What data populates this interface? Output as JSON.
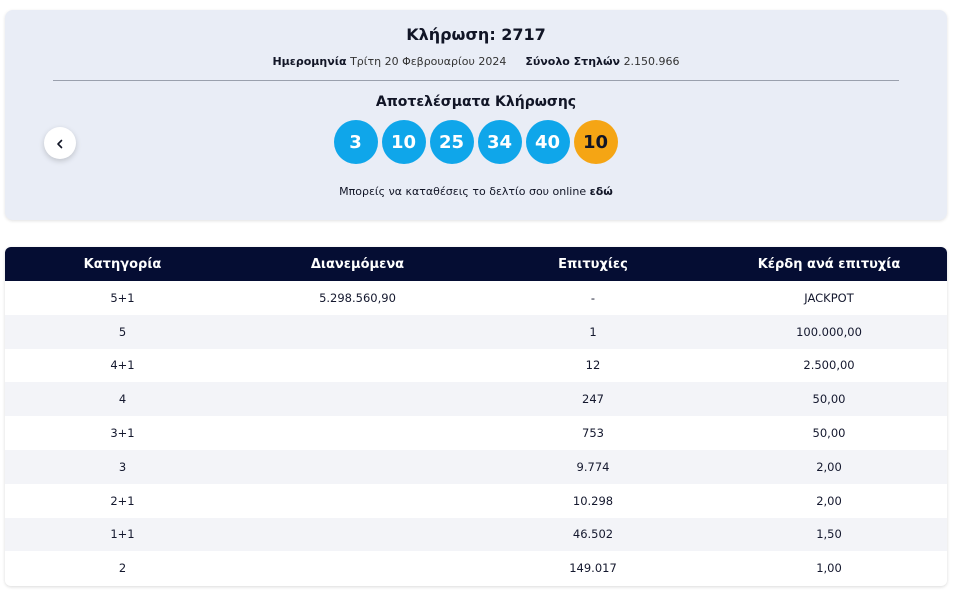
{
  "draw": {
    "title": "Κλήρωση: 2717",
    "date_label": "Ημερομηνία",
    "date_value": "Τρίτη 20 Φεβρουαρίου 2024",
    "total_label": "Σύνολο Στηλών",
    "total_value": "2.150.966",
    "results_title": "Αποτελέσματα Κλήρωσης",
    "numbers": [
      "3",
      "10",
      "25",
      "34",
      "40"
    ],
    "joker": "10",
    "online_text": "Μπορείς να καταθέσεις το δελτίο σου online",
    "online_link": "εδώ",
    "colors": {
      "ball": "#0fa6ea",
      "joker": "#f5a514",
      "header": "#050d33"
    }
  },
  "table": {
    "headers": [
      "Κατηγορία",
      "Διανεμόμενα",
      "Επιτυχίες",
      "Κέρδη ανά επιτυχία"
    ],
    "rows": [
      [
        "5+1",
        "5.298.560,90",
        "-",
        "JACKPOT"
      ],
      [
        "5",
        "",
        "1",
        "100.000,00"
      ],
      [
        "4+1",
        "",
        "12",
        "2.500,00"
      ],
      [
        "4",
        "",
        "247",
        "50,00"
      ],
      [
        "3+1",
        "",
        "753",
        "50,00"
      ],
      [
        "3",
        "",
        "9.774",
        "2,00"
      ],
      [
        "2+1",
        "",
        "10.298",
        "2,00"
      ],
      [
        "1+1",
        "",
        "46.502",
        "1,50"
      ],
      [
        "2",
        "",
        "149.017",
        "1,00"
      ]
    ]
  }
}
